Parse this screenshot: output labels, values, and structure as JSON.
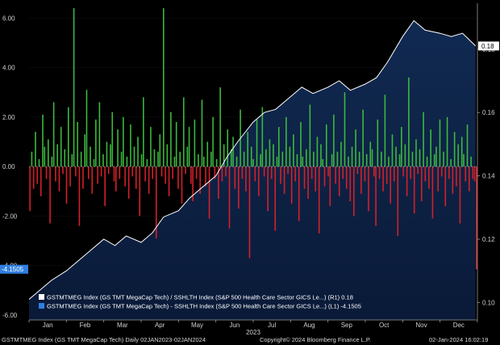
{
  "chart_data": {
    "type": "bar+area",
    "title": "",
    "footer": {
      "left": "GSTMTMEG Index (GS TMT MegaCap Tech)  Daily 02JAN2023-02JAN2024",
      "center": "Copyright© 2024 Bloomberg Finance L.P.",
      "right": "02-Jan-2024 16:02:19"
    },
    "x_axis": {
      "year_label": "2023",
      "months": [
        "Jan",
        "Feb",
        "Mar",
        "Apr",
        "May",
        "Jun",
        "Jul",
        "Aug",
        "Sep",
        "Oct",
        "Nov",
        "Dec"
      ]
    },
    "left_axis": {
      "ticks": [
        -6.0,
        -4.0,
        -2.0,
        0.0,
        2.0,
        4.0,
        6.0
      ],
      "tick_labels": [
        "-6.00",
        "-4.00",
        "-2.00",
        "0.00",
        "2.00",
        "4.00",
        "6.00"
      ],
      "range": [
        -6.2,
        6.6
      ]
    },
    "right_axis": {
      "ticks": [
        0.1,
        0.12,
        0.14,
        0.16,
        0.18
      ],
      "tick_labels": [
        "0.10",
        "0.12",
        "0.14",
        "0.16",
        "0.18"
      ],
      "range": [
        0.0945,
        0.1945
      ]
    },
    "legend": [
      {
        "text": "GSTMTMEG Index (GS TMT MegaCap Tech) / SSHLTH Index (S&P 500 Health Care Sector GICS Le...) (R1)  0.18",
        "color": "#ffffff"
      },
      {
        "text": "GSTMTMEG Index (GS TMT MegaCap Tech) - SSHLTH Index (S&P 500 Health Care Sector GICS Le...) (L1) -4.1505",
        "color": "#2f7fe0"
      }
    ],
    "last_values": {
      "ratio_label": "0.18",
      "spread_label": "-4.1505"
    },
    "series": [
      {
        "name": "GSTMTMEG Index (GS TMT MegaCap Tech) / SSHLTH Index (S&P 500 Health Care Sector GICS Le...)",
        "axis": "right",
        "kind": "area",
        "points": [
          [
            0.0,
            0.101
          ],
          [
            0.3,
            0.104
          ],
          [
            0.6,
            0.107
          ],
          [
            1.0,
            0.11
          ],
          [
            1.3,
            0.113
          ],
          [
            1.6,
            0.116
          ],
          [
            2.0,
            0.12
          ],
          [
            2.3,
            0.118
          ],
          [
            2.6,
            0.121
          ],
          [
            3.0,
            0.119
          ],
          [
            3.3,
            0.122
          ],
          [
            3.6,
            0.127
          ],
          [
            4.0,
            0.129
          ],
          [
            4.3,
            0.133
          ],
          [
            4.6,
            0.136
          ],
          [
            5.0,
            0.14
          ],
          [
            5.3,
            0.146
          ],
          [
            5.6,
            0.151
          ],
          [
            6.0,
            0.157
          ],
          [
            6.3,
            0.16
          ],
          [
            6.6,
            0.161
          ],
          [
            7.0,
            0.165
          ],
          [
            7.3,
            0.168
          ],
          [
            7.6,
            0.166
          ],
          [
            8.0,
            0.168
          ],
          [
            8.3,
            0.17
          ],
          [
            8.6,
            0.167
          ],
          [
            9.0,
            0.169
          ],
          [
            9.3,
            0.171
          ],
          [
            9.6,
            0.176
          ],
          [
            10.0,
            0.184
          ],
          [
            10.3,
            0.189
          ],
          [
            10.6,
            0.186
          ],
          [
            11.0,
            0.185
          ],
          [
            11.3,
            0.184
          ],
          [
            11.6,
            0.185
          ],
          [
            11.95,
            0.181
          ]
        ]
      },
      {
        "name": "GSTMTMEG Index (GS TMT MegaCap Tech) - SSHLTH Index (S&P 500 Health Care Sector GICS Le...)",
        "axis": "left",
        "kind": "bar",
        "values": [
          -1.8,
          0.6,
          -0.9,
          1.4,
          -0.7,
          0.3,
          -1.2,
          2.1,
          0.8,
          -0.5,
          1.1,
          -2.3,
          0.4,
          2.6,
          -0.6,
          0.9,
          -1.0,
          1.6,
          -0.3,
          0.7,
          -1.5,
          2.4,
          -0.8,
          0.5,
          6.4,
          -0.4,
          1.8,
          -2.4,
          0.6,
          -0.9,
          1.3,
          3.1,
          -0.5,
          0.8,
          -1.1,
          0.3,
          1.9,
          -0.7,
          2.6,
          -0.4,
          0.5,
          -1.6,
          1.0,
          -0.3,
          0.9,
          2.2,
          -0.6,
          -1.0,
          1.5,
          -0.5,
          0.6,
          2.0,
          -0.8,
          0.4,
          -1.3,
          1.7,
          -0.4,
          0.8,
          -0.9,
          1.2,
          -2.0,
          0.5,
          2.8,
          -0.6,
          0.3,
          -1.1,
          1.6,
          -0.5,
          0.7,
          -2.9,
          0.6,
          1.3,
          -0.4,
          6.4,
          -0.7,
          0.9,
          -1.2,
          2.2,
          -0.5,
          0.4,
          1.8,
          -0.9,
          0.6,
          -1.5,
          2.8,
          -0.3,
          0.8,
          1.6,
          -0.7,
          -1.4,
          1.9,
          -0.5,
          0.5,
          -1.1,
          2.7,
          0.4,
          -0.8,
          1.0,
          -2.1,
          0.6,
          2.0,
          -0.5,
          0.3,
          -1.3,
          3.2,
          -0.6,
          0.9,
          -0.4,
          1.5,
          -2.5,
          0.7,
          1.2,
          -0.9,
          0.4,
          -1.7,
          2.3,
          -0.5,
          0.6,
          -1.0,
          1.4,
          -3.7,
          0.8,
          0.3,
          -0.6,
          1.9,
          -1.2,
          0.5,
          2.4,
          -0.4,
          0.7,
          -1.8,
          1.1,
          -0.5,
          0.9,
          -2.6,
          0.4,
          1.6,
          -0.7,
          0.6,
          -1.1,
          2.0,
          -0.3,
          0.8,
          -1.5,
          1.3,
          -0.6,
          0.5,
          -2.2,
          1.8,
          0.4,
          -0.9,
          0.7,
          -1.3,
          2.5,
          -0.5,
          0.6,
          -1.0,
          1.2,
          -2.7,
          0.9,
          0.3,
          -0.8,
          1.7,
          -0.4,
          -1.6,
          0.5,
          2.1,
          -0.7,
          0.6,
          -1.2,
          1.0,
          -0.5,
          3.0,
          -0.9,
          0.4,
          -1.4,
          0.8,
          -2.0,
          1.5,
          -0.3,
          0.6,
          -1.1,
          2.3,
          -0.6,
          0.5,
          -1.8,
          1.0,
          0.7,
          -0.4,
          -2.4,
          1.9,
          -0.5,
          0.6,
          -1.0,
          2.9,
          -0.7,
          0.4,
          -1.5,
          1.3,
          -0.6,
          0.8,
          -2.8,
          0.5,
          1.6,
          -0.4,
          0.9,
          -1.2,
          3.6,
          -0.5,
          0.6,
          -1.9,
          1.1,
          -0.3,
          0.7,
          -1.4,
          2.2,
          -0.6,
          0.4,
          -0.9,
          1.5,
          -2.1,
          0.5,
          0.8,
          -1.0,
          1.9,
          -0.4,
          0.6,
          -1.6,
          2.0,
          -0.5,
          0.3,
          -1.1,
          1.4,
          -0.8,
          0.9,
          -2.3,
          1.2,
          0.5,
          -0.6,
          1.7,
          -1.0,
          0.4,
          -0.5,
          -0.6,
          -4.15
        ]
      }
    ]
  }
}
